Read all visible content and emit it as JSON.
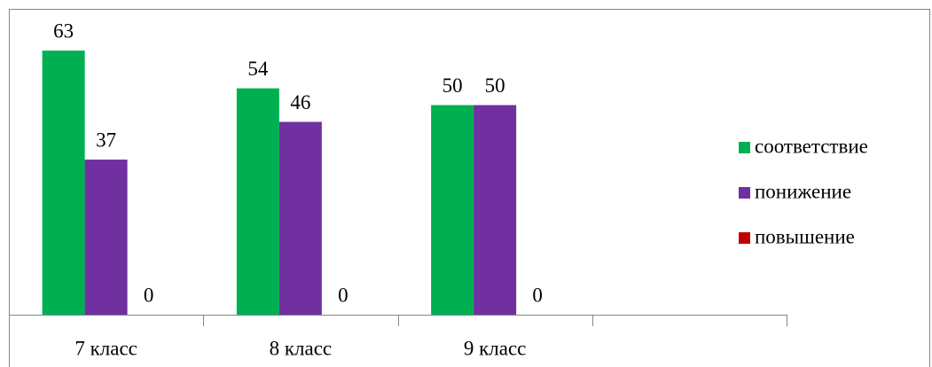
{
  "chart_data": {
    "type": "bar",
    "categories": [
      "7 класс",
      "8 класс",
      "9 класс",
      null
    ],
    "series": [
      {
        "name": "соответствие",
        "color": "#00b050",
        "values": [
          63,
          54,
          50,
          null
        ]
      },
      {
        "name": "понижение",
        "color": "#7030a0",
        "values": [
          37,
          46,
          50,
          null
        ]
      },
      {
        "name": "повышение",
        "color": "#c00000",
        "values": [
          0,
          0,
          0,
          null
        ]
      }
    ],
    "ylim": [
      0,
      70
    ],
    "legend": "right"
  }
}
